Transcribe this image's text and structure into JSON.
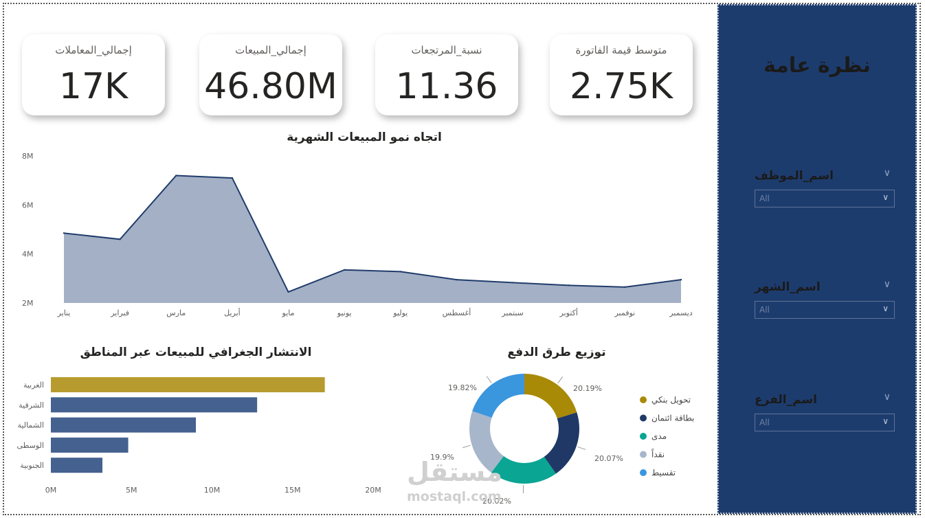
{
  "sidebar": {
    "title": "نظرة عامة",
    "slicers": [
      {
        "label": "اسم_الموظف",
        "value": "All"
      },
      {
        "label": "اسم_الشهر",
        "value": "All"
      },
      {
        "label": "اسم_الفرع",
        "value": "All"
      }
    ]
  },
  "cards": [
    {
      "label": "إجمالي_المعاملات",
      "value": "17K"
    },
    {
      "label": "إجمالي_المبيعات",
      "value": "46.80M"
    },
    {
      "label": "نسبة_المرتجعات",
      "value": "11.36"
    },
    {
      "label": "متوسط قيمة الفاتورة",
      "value": "2.75K"
    }
  ],
  "chart_data": [
    {
      "type": "area",
      "title": "اتجاه نمو المبيعات الشهرية",
      "categories": [
        "يناير",
        "فبراير",
        "مارس",
        "أبريل",
        "مايو",
        "يونيو",
        "يوليو",
        "أغسطس",
        "سبتمبر",
        "أكتوبر",
        "نوفمبر",
        "ديسمبر"
      ],
      "values": [
        4.85,
        4.6,
        7.2,
        7.1,
        2.45,
        3.35,
        3.28,
        2.95,
        2.83,
        2.72,
        2.65,
        2.95
      ],
      "ylim": [
        2,
        8
      ],
      "y_ticks": [
        "2M",
        "4M",
        "6M",
        "8M"
      ],
      "color": "#a4b0c5",
      "line_color": "#1f3c6b"
    },
    {
      "type": "bar",
      "orientation": "horizontal",
      "title": "الانتشار الجغرافي للمبيعات عبر المناطق",
      "categories": [
        "الغربية",
        "الشرقية",
        "الشمالية",
        "الوسطى",
        "الجنوبية"
      ],
      "values": [
        17,
        12.8,
        9,
        4.8,
        3.2
      ],
      "xlim": [
        0,
        20
      ],
      "x_ticks": [
        "0M",
        "5M",
        "10M",
        "15M",
        "20M"
      ],
      "colors": [
        "#b79b2e",
        "#44618f",
        "#44618f",
        "#44618f",
        "#44618f"
      ]
    },
    {
      "type": "pie",
      "donut": true,
      "title": "توزيع طرق الدفع",
      "labels": [
        "تحويل بنكي",
        "بطاقة ائتمان",
        "مدى",
        "نقداً",
        "تقسيط"
      ],
      "values": [
        20.19,
        20.07,
        20.02,
        19.9,
        19.82
      ],
      "value_labels": [
        "20.19%",
        "20.07%",
        "20.02%",
        "19.9%",
        "19.82%"
      ],
      "colors": [
        "#a98a06",
        "#1f3866",
        "#0aa593",
        "#a8b6cb",
        "#3a96dd"
      ]
    }
  ],
  "watermark": {
    "arabic": "مستقل",
    "latin": "mostaql.com"
  }
}
